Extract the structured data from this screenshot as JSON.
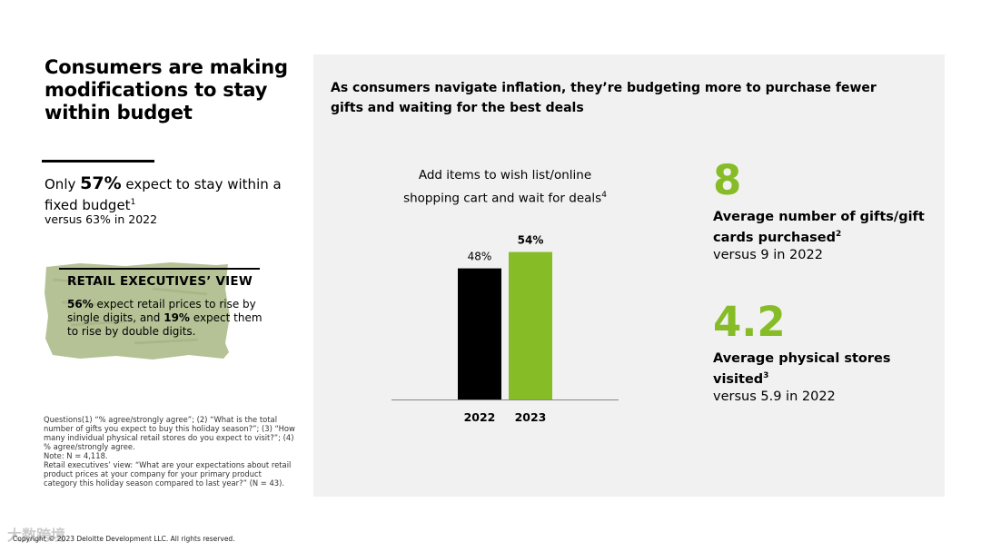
{
  "page": {
    "title": "Consumers are making modifications to stay within budget",
    "stat": {
      "prefix": "Only ",
      "value": "57%",
      "text": " expect to stay within a fixed budget",
      "sup": "1",
      "sub": "versus 63% in 2022"
    },
    "exec_view": {
      "heading": "RETAIL EXECUTIVES’ VIEW",
      "v1": "56%",
      "t1": " expect retail prices to rise by single digits, and ",
      "v2": "19%",
      "t2": " expect them to rise by double digits."
    },
    "footnotes": [
      "Questions(1) “% agree/strongly agree”; (2) “What is the total number of gifts you expect to buy this holiday season?”; (3) “How many individual physical retail stores do you expect to visit?”; (4) % agree/strongly agree.",
      "Note: N = 4,118.",
      "Retail executives’ view: “What are your expectations about retail product prices at your company for your primary product category this holiday season compared to last year?” (N = 43)."
    ],
    "copyright": "Copyright © 2023 Deloitte Development LLC. All rights reserved.",
    "watermark": "大数跨境"
  },
  "panel": {
    "headline": "As consumers navigate inflation, they’re budgeting more to purchase fewer gifts and waiting for the best deals",
    "stats": [
      {
        "value": "8",
        "label": "Average number of gifts/gift cards purchased",
        "sup": "2",
        "sub": "versus 9 in 2022"
      },
      {
        "value": "4.2",
        "label": "Average physical stores visited",
        "sup": "3",
        "sub": "versus 5.9 in 2022"
      }
    ]
  },
  "chart_data": {
    "type": "bar",
    "title": "Add items to wish list/online shopping cart and wait for deals",
    "title_sup": "4",
    "categories": [
      "2022",
      "2023"
    ],
    "values": [
      48,
      54
    ],
    "value_labels": [
      "48%",
      "54%"
    ],
    "colors": [
      "#000000",
      "#86bc25"
    ],
    "ylim": [
      0,
      60
    ],
    "xlabel": "",
    "ylabel": ""
  },
  "colors": {
    "accent": "#86bc25",
    "panel_bg": "#f1f1f1",
    "exec_bg": "#b7c49a"
  }
}
